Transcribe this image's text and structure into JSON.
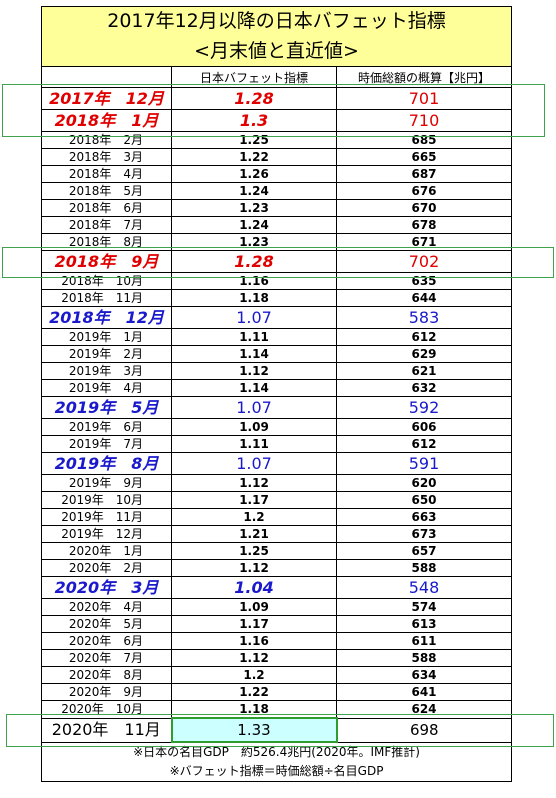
{
  "title": {
    "line1": "2017年12月以降の日本バフェット指標",
    "line2": "<月末値と直近値>"
  },
  "header": {
    "col1": "",
    "col2": "日本バフェット指標",
    "col3": "時価総額の概算【兆円】"
  },
  "rows": [
    {
      "date": "2017年　12月",
      "indicator": "1.28",
      "market_cap": "701",
      "style": "red"
    },
    {
      "date": "2018年　1月",
      "indicator": "1.3",
      "market_cap": "710",
      "style": "red"
    },
    {
      "date": "2018年　2月",
      "indicator": "1.25",
      "market_cap": "685",
      "style": "normal"
    },
    {
      "date": "2018年　3月",
      "indicator": "1.22",
      "market_cap": "665",
      "style": "normal"
    },
    {
      "date": "2018年　4月",
      "indicator": "1.26",
      "market_cap": "687",
      "style": "normal"
    },
    {
      "date": "2018年　5月",
      "indicator": "1.24",
      "market_cap": "676",
      "style": "normal"
    },
    {
      "date": "2018年　6月",
      "indicator": "1.23",
      "market_cap": "670",
      "style": "normal"
    },
    {
      "date": "2018年　7月",
      "indicator": "1.24",
      "market_cap": "678",
      "style": "normal"
    },
    {
      "date": "2018年　8月",
      "indicator": "1.23",
      "market_cap": "671",
      "style": "normal"
    },
    {
      "date": "2018年　9月",
      "indicator": "1.28",
      "market_cap": "702",
      "style": "red"
    },
    {
      "date": "2018年　10月",
      "indicator": "1.16",
      "market_cap": "635",
      "style": "normal"
    },
    {
      "date": "2018年　11月",
      "indicator": "1.18",
      "market_cap": "644",
      "style": "normal"
    },
    {
      "date": "2018年　12月",
      "indicator": "1.07",
      "market_cap": "583",
      "style": "blue"
    },
    {
      "date": "2019年　1月",
      "indicator": "1.11",
      "market_cap": "612",
      "style": "normal"
    },
    {
      "date": "2019年　2月",
      "indicator": "1.14",
      "market_cap": "629",
      "style": "normal"
    },
    {
      "date": "2019年　3月",
      "indicator": "1.12",
      "market_cap": "621",
      "style": "normal"
    },
    {
      "date": "2019年　4月",
      "indicator": "1.14",
      "market_cap": "632",
      "style": "normal"
    },
    {
      "date": "2019年　5月",
      "indicator": "1.07",
      "market_cap": "592",
      "style": "blue"
    },
    {
      "date": "2019年　6月",
      "indicator": "1.09",
      "market_cap": "606",
      "style": "normal"
    },
    {
      "date": "2019年　7月",
      "indicator": "1.11",
      "market_cap": "612",
      "style": "normal"
    },
    {
      "date": "2019年　8月",
      "indicator": "1.07",
      "market_cap": "591",
      "style": "blue"
    },
    {
      "date": "2019年　9月",
      "indicator": "1.12",
      "market_cap": "620",
      "style": "normal"
    },
    {
      "date": "2019年　10月",
      "indicator": "1.17",
      "market_cap": "650",
      "style": "normal"
    },
    {
      "date": "2019年　11月",
      "indicator": "1.2",
      "market_cap": "663",
      "style": "normal"
    },
    {
      "date": "2019年　12月",
      "indicator": "1.21",
      "market_cap": "673",
      "style": "normal"
    },
    {
      "date": "2020年　1月",
      "indicator": "1.25",
      "market_cap": "657",
      "style": "normal"
    },
    {
      "date": "2020年　2月",
      "indicator": "1.12",
      "market_cap": "588",
      "style": "normal"
    },
    {
      "date": "2020年　3月",
      "indicator": "1.04",
      "market_cap": "548",
      "style": "blue-bold"
    },
    {
      "date": "2020年　4月",
      "indicator": "1.09",
      "market_cap": "574",
      "style": "normal"
    },
    {
      "date": "2020年　5月",
      "indicator": "1.17",
      "market_cap": "613",
      "style": "normal"
    },
    {
      "date": "2020年　6月",
      "indicator": "1.16",
      "market_cap": "611",
      "style": "normal"
    },
    {
      "date": "2020年　7月",
      "indicator": "1.12",
      "market_cap": "588",
      "style": "normal"
    },
    {
      "date": "2020年　8月",
      "indicator": "1.2",
      "market_cap": "634",
      "style": "normal"
    },
    {
      "date": "2020年　9月",
      "indicator": "1.22",
      "market_cap": "641",
      "style": "normal"
    },
    {
      "date": "2020年　10月",
      "indicator": "1.18",
      "market_cap": "624",
      "style": "normal"
    },
    {
      "date": "2020年　11月",
      "indicator": "1.33",
      "market_cap": "698",
      "style": "last"
    }
  ],
  "notes": {
    "line1": "※日本の名目GDP　約526.4兆円(2020年。IMF推計)",
    "line2": "※バフェット指標＝時価総額÷名目GDP"
  },
  "colors": {
    "title_bg": "#ffff99",
    "highlight_red": "#e00000",
    "highlight_blue": "#1a1acc",
    "latest_bg": "#ccffff",
    "box_green": "#3fa34d"
  }
}
